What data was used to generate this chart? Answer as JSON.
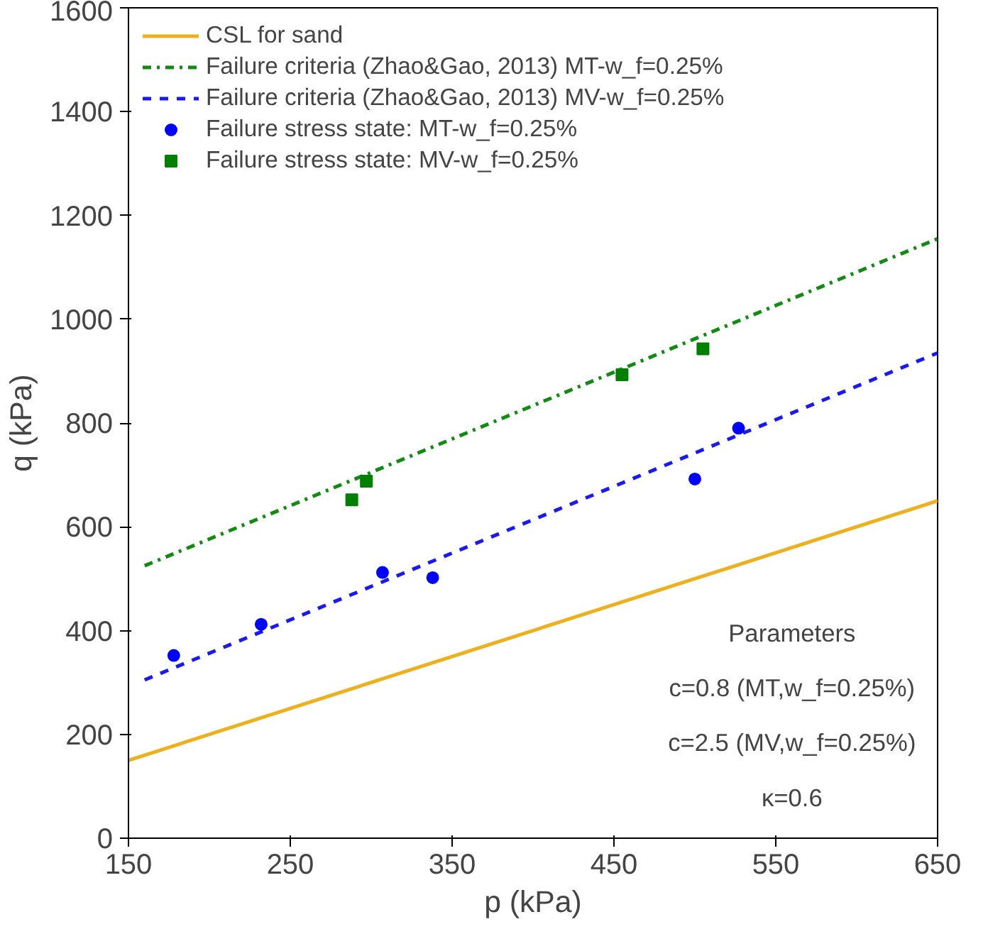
{
  "chart_data": {
    "type": "line",
    "xlabel": "p (kPa)",
    "ylabel": "q (kPa)",
    "xlim": [
      150,
      650
    ],
    "xticks": [
      150,
      250,
      350,
      450,
      550,
      650
    ],
    "ylim": [
      0,
      1600
    ],
    "yticks": [
      0,
      200,
      400,
      600,
      800,
      1000,
      1200,
      1400,
      1600
    ],
    "grid": false,
    "legend": "top left",
    "series": [
      {
        "name": "CSL for sand",
        "color": "#edb120",
        "line_style": "solid",
        "x": [
          150,
          650
        ],
        "values": [
          150,
          650
        ]
      },
      {
        "name": "Failure criteria (Zhao&Gao, 2013) MT-w_f=0.25%",
        "color": "#138a13",
        "line_style": "dashdot",
        "x": [
          160,
          650
        ],
        "values": [
          525,
          1155
        ]
      },
      {
        "name": "Failure criteria (Zhao&Gao, 2013) MV-w_f=0.25%",
        "color": "#1a1aee",
        "line_style": "dashed",
        "x": [
          160,
          650
        ],
        "values": [
          305,
          935
        ]
      },
      {
        "name": "Failure stress state: MT-w_f=0.25%",
        "type": "scatter",
        "marker": "circle",
        "color": "#0000ff",
        "x": [
          178,
          232,
          307,
          338,
          500,
          527
        ],
        "values": [
          352,
          412,
          512,
          502,
          692,
          790
        ]
      },
      {
        "name": "Failure stress state: MV-w_f=0.25%",
        "type": "scatter",
        "marker": "square",
        "color": "#008000",
        "x": [
          288,
          297,
          455,
          505
        ],
        "values": [
          652,
          688,
          893,
          943
        ]
      }
    ],
    "annotations": [
      "Parameters",
      "c=0.8 (MT,w_f=0.25%)",
      "c=2.5 (MV,w_f=0.25%)",
      "κ=0.6"
    ]
  }
}
